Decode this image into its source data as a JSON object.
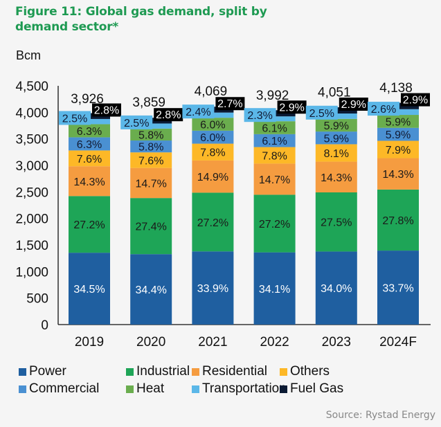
{
  "title": "Figure 11: Global gas demand, split by demand sector*",
  "unit": "Bcm",
  "source": "Source: Rystad Energy",
  "chart_data": {
    "type": "bar",
    "stacked": true,
    "title": "Figure 11: Global gas demand, split by demand sector*",
    "ylabel": "Bcm",
    "xlabel": "",
    "ylim": [
      0,
      4500
    ],
    "yticks": [
      0,
      500,
      1000,
      1500,
      2000,
      2500,
      3000,
      3500,
      4000,
      4500
    ],
    "ytick_labels": [
      "0",
      "500",
      "1,000",
      "1,500",
      "2,000",
      "2,500",
      "3,000",
      "3,500",
      "4,000",
      "4,500"
    ],
    "grid": false,
    "legend_position": "bottom",
    "categories": [
      "2019",
      "2020",
      "2021",
      "2022",
      "2023",
      "2024F"
    ],
    "totals": [
      3926,
      3859,
      4069,
      3992,
      4051,
      4138
    ],
    "total_labels": [
      "3,926",
      "3,859",
      "4,069",
      "3,992",
      "4,051",
      "4,138"
    ],
    "series": [
      {
        "name": "Power",
        "color": "#1f5fa0",
        "label_color": "#ffffff",
        "values_pct": [
          34.5,
          34.4,
          33.9,
          34.1,
          34.0,
          33.7
        ]
      },
      {
        "name": "Industrial",
        "color": "#1ea557",
        "label_color": "#1a1a1a",
        "values_pct": [
          27.2,
          27.4,
          27.2,
          27.2,
          27.5,
          27.8
        ]
      },
      {
        "name": "Residential",
        "color": "#f59c40",
        "label_color": "#1a1a1a",
        "values_pct": [
          14.3,
          14.7,
          14.9,
          14.7,
          14.3,
          14.3
        ]
      },
      {
        "name": "Others",
        "color": "#fdb827",
        "label_color": "#1a1a1a",
        "values_pct": [
          7.6,
          7.6,
          7.8,
          7.8,
          8.1,
          7.9
        ]
      },
      {
        "name": "Commercial",
        "color": "#4a90d2",
        "label_color": "#111a33",
        "values_pct": [
          6.3,
          5.8,
          6.0,
          6.1,
          5.9,
          5.9
        ]
      },
      {
        "name": "Heat",
        "color": "#6aad4e",
        "label_color": "#1a1a1a",
        "values_pct": [
          6.3,
          5.8,
          6.0,
          6.1,
          5.9,
          5.9
        ]
      },
      {
        "name": "Transportation",
        "color": "#5bb7e8",
        "label_color": "#111a33",
        "values_pct": [
          2.5,
          2.5,
          2.4,
          2.3,
          2.5,
          2.6
        ]
      },
      {
        "name": "Fuel Gas",
        "color": "#0b1a33",
        "label_color": "#ffffff",
        "values_pct": [
          2.8,
          2.8,
          2.7,
          2.9,
          2.9,
          2.9
        ]
      }
    ]
  },
  "legend": [
    {
      "name": "Power",
      "color": "#1f5fa0"
    },
    {
      "name": "Industrial",
      "color": "#1ea557"
    },
    {
      "name": "Residential",
      "color": "#f59c40"
    },
    {
      "name": "Others",
      "color": "#fdb827"
    },
    {
      "name": "Commercial",
      "color": "#4a90d2"
    },
    {
      "name": "Heat",
      "color": "#6aad4e"
    },
    {
      "name": "Transportation",
      "color": "#5bb7e8"
    },
    {
      "name": "Fuel Gas",
      "color": "#0b1a33"
    }
  ]
}
